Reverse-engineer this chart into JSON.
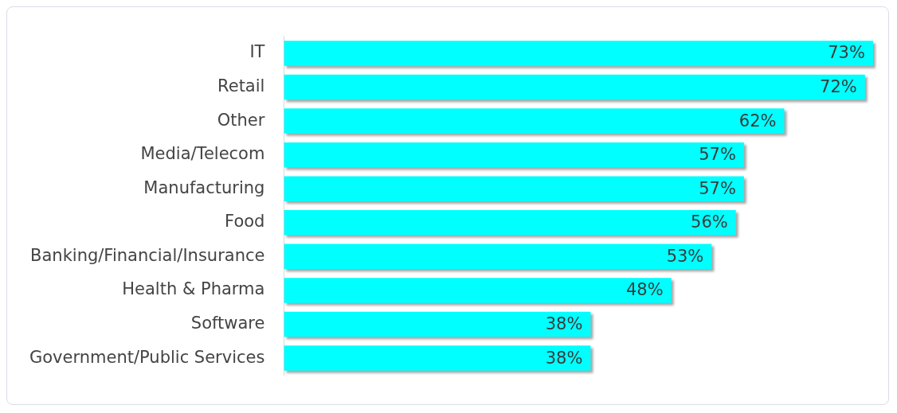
{
  "chart_data": {
    "type": "bar",
    "orientation": "horizontal",
    "categories": [
      "IT",
      "Retail",
      "Other",
      "Media/Telecom",
      "Manufacturing",
      "Food",
      "Banking/Financial/Insurance",
      "Health & Pharma",
      "Software",
      "Government/Public Services"
    ],
    "values": [
      73,
      72,
      62,
      57,
      57,
      56,
      53,
      48,
      38,
      38
    ],
    "value_labels": [
      "73%",
      "72%",
      "62%",
      "57%",
      "57%",
      "56%",
      "53%",
      "48%",
      "38%",
      "38%"
    ],
    "color": "#00ffff",
    "xlim": [
      0,
      73.5
    ],
    "tick_labels": "y"
  }
}
